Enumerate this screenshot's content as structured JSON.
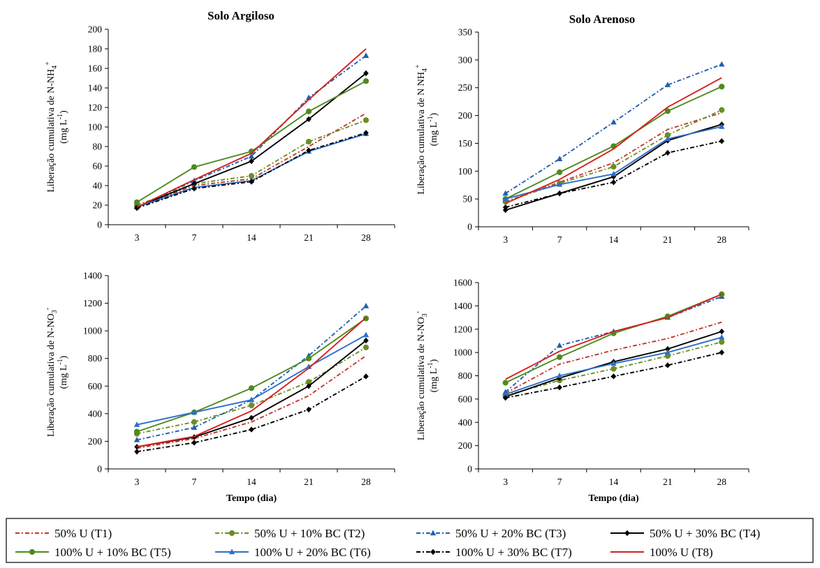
{
  "legend_entries": [
    {
      "name": "50% U (T1)",
      "color": "#c0392b",
      "dash": "dashdot",
      "marker": "none"
    },
    {
      "name": "50% U + 10% BC (T2)",
      "color": "#6b8e23",
      "dash": "dashdot",
      "marker": "circle"
    },
    {
      "name": "50% U + 20% BC (T3)",
      "color": "#1f5fad",
      "dash": "dashdot",
      "marker": "triangle"
    },
    {
      "name": "50% U + 30% BC (T4)",
      "color": "#000000",
      "dash": "solid",
      "marker": "diamond"
    },
    {
      "name": "100% U + 10% BC (T5)",
      "color": "#4e8a1e",
      "dash": "solid",
      "marker": "circle"
    },
    {
      "name": "100% U + 20% BC (T6)",
      "color": "#2c6fc9",
      "dash": "solid",
      "marker": "triangle"
    },
    {
      "name": "100% U + 30% BC (T7)",
      "color": "#000000",
      "dash": "dashdot",
      "marker": "diamond"
    },
    {
      "name": "100% U (T8)",
      "color": "#d62020",
      "dash": "solid",
      "marker": "none"
    }
  ],
  "chart_data": [
    {
      "id": "argiloso_nh4",
      "type": "line",
      "title": "Solo Argiloso",
      "ylabel_line1": "Liberação cumulativa de N-NH",
      "ylabel_sub": "4",
      "ylabel_sup": "+",
      "ylabel_line2": "(mg L",
      "ylabel_line2_sup": "-1",
      "ylabel_line2_end": ")",
      "xlabel": "",
      "categories": [
        "3",
        "7",
        "14",
        "21",
        "28"
      ],
      "ylim": [
        0,
        200
      ],
      "yticks": [
        "0",
        "20",
        "40",
        "60",
        "80",
        "100",
        "120",
        "140",
        "160",
        "180",
        "200"
      ],
      "series": [
        {
          "name": "50% U (T1)",
          "values": [
            18,
            40,
            47,
            80,
            114
          ]
        },
        {
          "name": "50% U + 10% BC (T2)",
          "values": [
            20,
            42,
            50,
            85,
            107
          ]
        },
        {
          "name": "50% U + 20% BC (T3)",
          "values": [
            18,
            45,
            70,
            130,
            173
          ]
        },
        {
          "name": "50% U + 30% BC (T4)",
          "values": [
            18,
            42,
            65,
            108,
            155
          ]
        },
        {
          "name": "100% U + 10% BC (T5)",
          "values": [
            23,
            59,
            75,
            116,
            147
          ]
        },
        {
          "name": "100% U + 20% BC (T6)",
          "values": [
            18,
            38,
            45,
            75,
            93
          ]
        },
        {
          "name": "100% U + 30% BC (T7)",
          "values": [
            17,
            37,
            44,
            76,
            94
          ]
        },
        {
          "name": "100% U (T8)",
          "values": [
            18,
            46,
            73,
            128,
            180
          ]
        }
      ]
    },
    {
      "id": "arenoso_nh4",
      "type": "line",
      "title": "Solo Arenoso",
      "ylabel_line1": "Liberação cumulativa de N NH",
      "ylabel_sub": "4",
      "ylabel_sup": "+",
      "ylabel_line2": "(mg L",
      "ylabel_line2_sup": "-1",
      "ylabel_line2_end": ")",
      "xlabel": "",
      "categories": [
        "3",
        "7",
        "14",
        "21",
        "28"
      ],
      "ylim": [
        0,
        350
      ],
      "yticks": [
        "0",
        "50",
        "100",
        "150",
        "200",
        "250",
        "300",
        "350"
      ],
      "series": [
        {
          "name": "50% U (T1)",
          "values": [
            45,
            80,
            115,
            175,
            205
          ]
        },
        {
          "name": "50% U + 10% BC (T2)",
          "values": [
            45,
            78,
            108,
            165,
            210
          ]
        },
        {
          "name": "50% U + 20% BC (T3)",
          "values": [
            60,
            122,
            188,
            255,
            292
          ]
        },
        {
          "name": "50% U + 30% BC (T4)",
          "values": [
            30,
            60,
            90,
            155,
            184
          ]
        },
        {
          "name": "100% U + 10% BC (T5)",
          "values": [
            50,
            98,
            145,
            208,
            252
          ]
        },
        {
          "name": "100% U + 20% BC (T6)",
          "values": [
            50,
            76,
            95,
            158,
            180
          ]
        },
        {
          "name": "100% U + 30% BC (T7)",
          "values": [
            35,
            60,
            80,
            133,
            154
          ]
        },
        {
          "name": "100% U (T8)",
          "values": [
            42,
            85,
            140,
            215,
            268
          ]
        }
      ]
    },
    {
      "id": "argiloso_no3",
      "type": "line",
      "title": "",
      "ylabel_line1": "Liberação cumulativa de N-NO",
      "ylabel_sub": "3",
      "ylabel_sup": "-",
      "ylabel_line2": "(mg L",
      "ylabel_line2_sup": "-1",
      "ylabel_line2_end": ")",
      "xlabel": "Tempo (dia)",
      "categories": [
        "3",
        "7",
        "14",
        "21",
        "28"
      ],
      "ylim": [
        0,
        1400
      ],
      "yticks": [
        "0",
        "200",
        "400",
        "600",
        "800",
        "1000",
        "1200",
        "1400"
      ],
      "series": [
        {
          "name": "50% U (T1)",
          "values": [
            150,
            220,
            340,
            530,
            820
          ]
        },
        {
          "name": "50% U + 10% BC (T2)",
          "values": [
            255,
            340,
            460,
            630,
            880
          ]
        },
        {
          "name": "50% U + 20% BC (T3)",
          "values": [
            210,
            300,
            500,
            820,
            1180
          ]
        },
        {
          "name": "50% U + 30% BC (T4)",
          "values": [
            160,
            230,
            370,
            600,
            930
          ]
        },
        {
          "name": "100% U + 10% BC (T5)",
          "values": [
            270,
            410,
            585,
            800,
            1090
          ]
        },
        {
          "name": "100% U + 20% BC (T6)",
          "values": [
            320,
            410,
            500,
            740,
            970
          ]
        },
        {
          "name": "100% U + 30% BC (T7)",
          "values": [
            125,
            190,
            285,
            430,
            670
          ]
        },
        {
          "name": "100% U (T8)",
          "values": [
            160,
            235,
            420,
            730,
            1095
          ]
        }
      ]
    },
    {
      "id": "arenoso_no3",
      "type": "line",
      "title": "",
      "ylabel_line1": "Liberação cumulativa de N-NO",
      "ylabel_sub": "3",
      "ylabel_sup": "-",
      "ylabel_line2": "(mg L",
      "ylabel_line2_sup": "-1",
      "ylabel_line2_end": ")",
      "xlabel": "Tempo (dia)",
      "categories": [
        "3",
        "7",
        "14",
        "21",
        "28"
      ],
      "ylim": [
        0,
        1600
      ],
      "yticks": [
        "0",
        "200",
        "400",
        "600",
        "800",
        "1000",
        "1200",
        "1400",
        "1600"
      ],
      "series": [
        {
          "name": "50% U (T1)",
          "values": [
            650,
            900,
            1020,
            1120,
            1260
          ]
        },
        {
          "name": "50% U + 10% BC (T2)",
          "values": [
            630,
            760,
            860,
            970,
            1090
          ]
        },
        {
          "name": "50% U + 20% BC (T3)",
          "values": [
            660,
            1060,
            1180,
            1300,
            1480
          ]
        },
        {
          "name": "50% U + 30% BC (T4)",
          "values": [
            620,
            780,
            920,
            1030,
            1180
          ]
        },
        {
          "name": "100% U + 10% BC (T5)",
          "values": [
            740,
            960,
            1165,
            1310,
            1500
          ]
        },
        {
          "name": "100% U + 20% BC (T6)",
          "values": [
            640,
            800,
            905,
            1000,
            1130
          ]
        },
        {
          "name": "100% U + 30% BC (T7)",
          "values": [
            610,
            700,
            795,
            890,
            1000
          ]
        },
        {
          "name": "100% U (T8)",
          "values": [
            770,
            1010,
            1180,
            1300,
            1500
          ]
        }
      ]
    }
  ]
}
